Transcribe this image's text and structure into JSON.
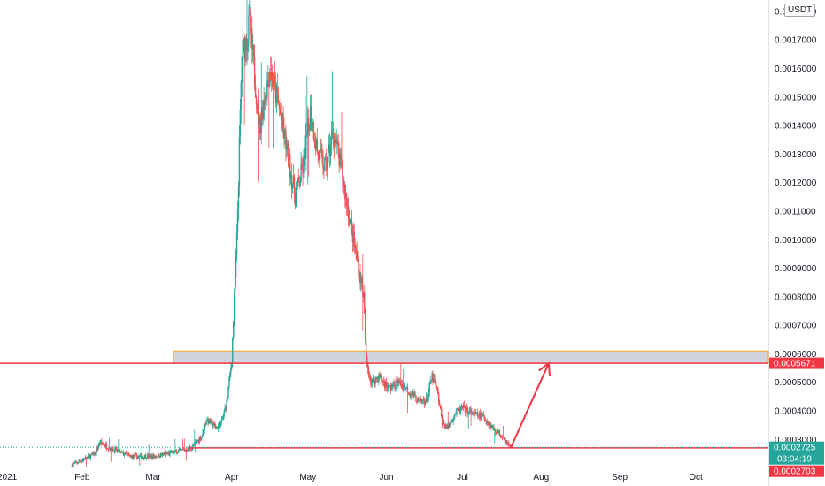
{
  "currency_badge": "USDT",
  "colors": {
    "up": "#26a69a",
    "down": "#ef5350",
    "resistance_zone_fill": "#d1d4dc",
    "resistance_zone_border": "#f5a623",
    "line": "#f23645",
    "arrow": "#f23645",
    "axis_border": "#e0e3eb"
  },
  "chart_data": {
    "type": "candlestick",
    "y_axis": {
      "range": [
        0.000205,
        0.00184
      ],
      "ticks": [
        "0.0003000",
        "0.0004000",
        "0.0005000",
        "0.0006000",
        "0.0007000",
        "0.0008000",
        "0.0009000",
        "0.0010000",
        "0.0011000",
        "0.0012000",
        "0.0013000",
        "0.0014000",
        "0.0015000",
        "0.0016000",
        "0.0017000",
        "0.0018000"
      ]
    },
    "x_axis": {
      "range": [
        "2021-01-01",
        "2021-10-31"
      ],
      "ticks": [
        {
          "label": "2021",
          "date": "2021-01-01"
        },
        {
          "label": "Feb",
          "date": "2021-02-01"
        },
        {
          "label": "Mar",
          "date": "2021-03-01"
        },
        {
          "label": "Apr",
          "date": "2021-04-01"
        },
        {
          "label": "May",
          "date": "2021-05-01"
        },
        {
          "label": "Jun",
          "date": "2021-06-01"
        },
        {
          "label": "Jul",
          "date": "2021-07-01"
        },
        {
          "label": "Aug",
          "date": "2021-08-01"
        },
        {
          "label": "Sep",
          "date": "2021-09-01"
        },
        {
          "label": "Oct",
          "date": "2021-10-01"
        }
      ]
    },
    "anchors": [
      [
        "2021-01-28",
        0.00021
      ],
      [
        "2021-02-06",
        0.00025
      ],
      [
        "2021-02-08",
        0.00029
      ],
      [
        "2021-02-12",
        0.00027
      ],
      [
        "2021-02-20",
        0.00024
      ],
      [
        "2021-03-01",
        0.00024
      ],
      [
        "2021-03-12",
        0.00026
      ],
      [
        "2021-03-16",
        0.00027
      ],
      [
        "2021-03-20",
        0.00031
      ],
      [
        "2021-03-22",
        0.00037
      ],
      [
        "2021-03-26",
        0.00034
      ],
      [
        "2021-03-28",
        0.00036
      ],
      [
        "2021-03-30",
        0.00043
      ],
      [
        "2021-04-01",
        0.00058
      ],
      [
        "2021-04-03",
        0.001
      ],
      [
        "2021-04-05",
        0.00165
      ],
      [
        "2021-04-08",
        0.00175
      ],
      [
        "2021-04-12",
        0.0014
      ],
      [
        "2021-04-16",
        0.0016
      ],
      [
        "2021-04-20",
        0.00145
      ],
      [
        "2021-04-23",
        0.0013
      ],
      [
        "2021-04-26",
        0.00115
      ],
      [
        "2021-04-29",
        0.00125
      ],
      [
        "2021-05-02",
        0.00145
      ],
      [
        "2021-05-05",
        0.0013
      ],
      [
        "2021-05-08",
        0.00125
      ],
      [
        "2021-05-11",
        0.00138
      ],
      [
        "2021-05-14",
        0.00125
      ],
      [
        "2021-05-17",
        0.0011
      ],
      [
        "2021-05-19",
        0.001
      ],
      [
        "2021-05-21",
        0.0009
      ],
      [
        "2021-05-23",
        0.0008
      ],
      [
        "2021-05-24",
        0.00058
      ],
      [
        "2021-05-26",
        0.0005
      ],
      [
        "2021-05-29",
        0.00052
      ],
      [
        "2021-06-02",
        0.00048
      ],
      [
        "2021-06-06",
        0.0005
      ],
      [
        "2021-06-10",
        0.00047
      ],
      [
        "2021-06-14",
        0.00043
      ],
      [
        "2021-06-17",
        0.00044
      ],
      [
        "2021-06-19",
        0.00052
      ],
      [
        "2021-06-21",
        0.00047
      ],
      [
        "2021-06-23",
        0.00036
      ],
      [
        "2021-06-25",
        0.00034
      ],
      [
        "2021-06-28",
        0.00039
      ],
      [
        "2021-07-01",
        0.00041
      ],
      [
        "2021-07-05",
        0.00039
      ],
      [
        "2021-07-09",
        0.00038
      ],
      [
        "2021-07-13",
        0.00034
      ],
      [
        "2021-07-17",
        0.00031
      ],
      [
        "2021-07-20",
        0.00027
      ]
    ],
    "series_range": [
      "2021-01-28",
      "2021-07-20"
    ],
    "resistance_zone": {
      "from": "2021-03-09",
      "to": "2021-10-31",
      "low": 0.0005671,
      "high": 0.00061
    },
    "horizontal_lines": [
      0.0005671,
      0.0002703
    ],
    "dotted_price_line": 0.0002725,
    "arrow": {
      "from_date": "2021-07-20",
      "from_price": 0.0002703,
      "to_date": "2021-08-04",
      "to_price": 0.0005671
    },
    "price_tags": [
      {
        "label": "0.0005671",
        "price": 0.0005671,
        "color": "#f23645"
      },
      {
        "label": "0.0002725",
        "sublabel": "03:04:19",
        "price": 0.0002725,
        "color": "#26a69a"
      },
      {
        "label": "0.0002703",
        "price": 0.0002703,
        "color": "#f23645"
      }
    ]
  }
}
